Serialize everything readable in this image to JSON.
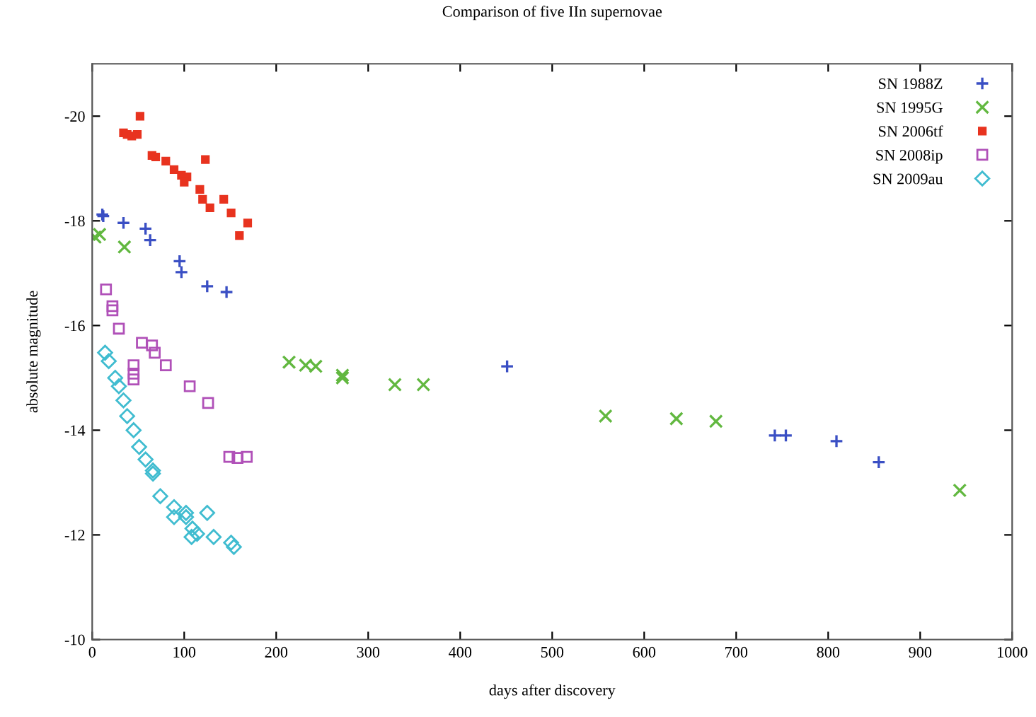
{
  "chart_data": {
    "type": "scatter",
    "title": "Comparison of five IIn supernovae",
    "xlabel": "days after discovery",
    "ylabel": "absolute magnitude",
    "xlim": [
      0,
      1000
    ],
    "xticks": [
      0,
      100,
      200,
      300,
      400,
      500,
      600,
      700,
      800,
      900,
      1000
    ],
    "ylim": [
      -10,
      -21
    ],
    "yticks": [
      -10,
      -12,
      -14,
      -16,
      -18,
      -20
    ],
    "grid": false,
    "legend": "top right",
    "series": [
      {
        "name": "SN 1988Z",
        "color": "#3a4fc4",
        "marker": "plus",
        "x": [
          11,
          12,
          34,
          58,
          63,
          95,
          97,
          125,
          146,
          451,
          742,
          754,
          809,
          855
        ],
        "values": [
          -18.12,
          -18.09,
          -17.96,
          -17.85,
          -17.63,
          -17.23,
          -17.02,
          -16.75,
          -16.64,
          -15.22,
          -13.9,
          -13.9,
          -13.79,
          -13.39
        ]
      },
      {
        "name": "SN 1995G",
        "color": "#62b840",
        "marker": "x",
        "x": [
          3,
          8,
          35,
          214,
          232,
          243,
          272,
          272,
          329,
          360,
          558,
          635,
          678,
          943
        ],
        "values": [
          -17.69,
          -17.74,
          -17.5,
          -15.3,
          -15.24,
          -15.22,
          -15.05,
          -15.0,
          -14.87,
          -14.87,
          -14.27,
          -14.22,
          -14.17,
          -12.85
        ]
      },
      {
        "name": "SN 2006tf",
        "color": "#e8331f",
        "marker": "square_filled",
        "x": [
          52,
          34,
          38,
          43,
          49,
          65,
          69,
          80,
          89,
          97,
          103,
          100,
          123,
          117,
          120,
          128,
          143,
          151,
          169,
          160
        ],
        "values": [
          -20.0,
          -19.68,
          -19.65,
          -19.62,
          -19.65,
          -19.25,
          -19.22,
          -19.14,
          -18.98,
          -18.87,
          -18.84,
          -18.74,
          -19.17,
          -18.6,
          -18.41,
          -18.25,
          -18.41,
          -18.15,
          -17.96,
          -17.72
        ]
      },
      {
        "name": "SN 2008ip",
        "color": "#b050b8",
        "marker": "square",
        "x": [
          15,
          22,
          22,
          29,
          54,
          65,
          68,
          45,
          45,
          45,
          80,
          106,
          126,
          149,
          158,
          168
        ],
        "values": [
          -16.69,
          -16.37,
          -16.29,
          -15.94,
          -15.67,
          -15.62,
          -15.48,
          -15.24,
          -15.08,
          -14.97,
          -15.24,
          -14.84,
          -14.52,
          -13.49,
          -13.47,
          -13.49
        ]
      },
      {
        "name": "SN 2009au",
        "color": "#40bcd0",
        "marker": "diamond",
        "x": [
          14,
          18,
          25,
          29,
          34,
          38,
          45,
          51,
          58,
          66,
          66,
          74,
          89,
          89,
          102,
          102,
          125,
          109,
          114,
          108,
          132,
          151,
          154
        ],
        "values": [
          -15.48,
          -15.32,
          -15.0,
          -14.84,
          -14.57,
          -14.27,
          -14.0,
          -13.68,
          -13.44,
          -13.23,
          -13.17,
          -12.74,
          -12.53,
          -12.34,
          -12.42,
          -12.34,
          -12.42,
          -12.12,
          -12.02,
          -11.96,
          -11.96,
          -11.85,
          -11.77
        ]
      }
    ]
  }
}
